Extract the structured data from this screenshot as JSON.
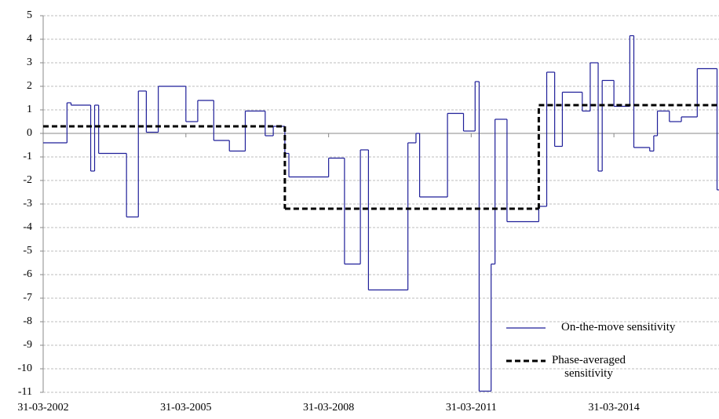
{
  "chart_data": {
    "type": "step",
    "xlim": [
      "31-03-2002",
      "15-06-2016"
    ],
    "xticks": [
      "31-03-2002",
      "31-03-2005",
      "31-03-2008",
      "31-03-2011",
      "31-03-2014"
    ],
    "ylim": [
      -11,
      5
    ],
    "yticks": [
      -11,
      -10,
      -9,
      -8,
      -7,
      -6,
      -5,
      -4,
      -3,
      -2,
      -1,
      0,
      1,
      2,
      3,
      4,
      5
    ],
    "grid": true,
    "legend": "lower right",
    "series": [
      {
        "name": "On-the-move sensitivity",
        "color": "#1f1f99",
        "dash": false,
        "x": [
          "31-03-2002",
          "30-09-2002",
          "31-10-2002",
          "31-03-2003",
          "30-04-2003",
          "31-05-2003",
          "31-12-2003",
          "31-03-2004",
          "31-05-2004",
          "31-08-2004",
          "31-03-2005",
          "30-06-2005",
          "31-10-2005",
          "28-02-2006",
          "30-06-2006",
          "30-11-2006",
          "31-01-2007",
          "30-04-2007",
          "31-05-2007",
          "31-03-2008",
          "31-07-2008",
          "30-11-2008",
          "31-01-2009",
          "30-11-2009",
          "31-01-2010",
          "28-02-2010",
          "30-09-2010",
          "31-01-2011",
          "30-04-2011",
          "31-05-2011",
          "31-08-2011",
          "30-09-2011",
          "31-12-2011",
          "31-08-2012",
          "31-10-2012",
          "31-12-2012",
          "28-02-2013",
          "31-07-2013",
          "30-09-2013",
          "30-11-2013",
          "31-12-2013",
          "31-03-2014",
          "31-07-2014",
          "31-08-2014",
          "31-12-2014",
          "31-01-2015",
          "28-02-2015",
          "31-05-2015",
          "31-08-2015",
          "31-12-2015",
          "31-05-2016"
        ],
        "values": [
          -0.4,
          1.3,
          1.2,
          -1.6,
          1.2,
          -0.85,
          -3.55,
          1.8,
          0.05,
          2.0,
          0.5,
          1.4,
          -0.3,
          -0.75,
          0.95,
          -0.1,
          0.3,
          -0.85,
          -1.85,
          -1.05,
          -5.55,
          -0.7,
          -6.65,
          -0.4,
          0,
          -2.7,
          0.85,
          0.1,
          2.2,
          -10.95,
          -5.55,
          0.6,
          -3.75,
          -3.1,
          2.6,
          -0.55,
          1.75,
          0.95,
          3.0,
          -1.6,
          2.25,
          1.15,
          4.15,
          -0.6,
          -0.75,
          -0.1,
          0.95,
          0.5,
          0.7,
          2.75,
          -2.4
        ]
      },
      {
        "name": "Phase-averaged sensitivity",
        "color": "#000000",
        "dash": true,
        "x": [
          "31-03-2002",
          "30-04-2007",
          "31-08-2012"
        ],
        "values": [
          0.3,
          -3.2,
          1.2
        ]
      }
    ]
  }
}
